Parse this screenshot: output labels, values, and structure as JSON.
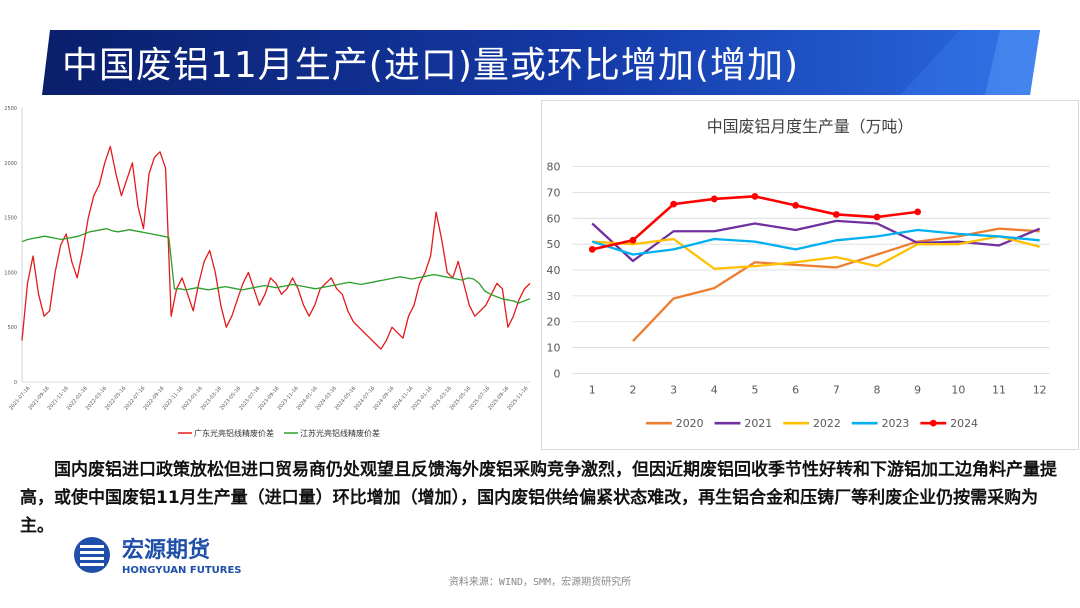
{
  "slide": {
    "title": "中国废铝11月生产(进口)量或环比增加(增加)",
    "paragraph": "国内废铝进口政策放松但进口贸易商仍处观望且反馈海外废铝采购竞争激烈，但因近期废铝回收季节性好转和下游铝加工边角料产量提高，或使中国废铝11月生产量（进口量）环比增加（增加），国内废铝供给偏紧状态难改，再生铝合金和压铸厂等利废企业仍按需采购为主。",
    "logo_cn": "宏源期货",
    "logo_en": "HONGYUAN FUTURES",
    "source": "资料来源：WIND，SMM，宏源期货研究所",
    "colors": {
      "banner_dark": "#0a1f6b",
      "banner_blue": "#1f4fd1",
      "logo_blue": "#1f4fa8"
    }
  },
  "chart_data": [
    {
      "type": "line",
      "title": "",
      "ylim": [
        0,
        2500
      ],
      "yticks": [
        "0",
        "500",
        "1000",
        "1500",
        "2000",
        "2500"
      ],
      "xticks": [
        "2021-07-16",
        "2021-09-16",
        "2021-11-16",
        "2022-01-16",
        "2022-03-16",
        "2022-05-16",
        "2022-07-16",
        "2022-09-16",
        "2022-11-16",
        "2023-01-16",
        "2023-03-16",
        "2023-05-16",
        "2023-07-16",
        "2023-09-16",
        "2023-11-16",
        "2024-01-16",
        "2024-03-16",
        "2024-05-16",
        "2024-07-16",
        "2024-09-16",
        "2024-11-16",
        "2025-01-16",
        "2025-03-16",
        "2025-05-16",
        "2025-07-16",
        "2025-09-16",
        "2025-11-16"
      ],
      "series": [
        {
          "name": "广东光亮铝线精废价差",
          "color": "#e31a1c",
          "values": [
            380,
            900,
            1150,
            800,
            600,
            650,
            1000,
            1250,
            1350,
            1100,
            950,
            1200,
            1500,
            1700,
            1800,
            2000,
            2150,
            1900,
            1700,
            1850,
            2000,
            1600,
            1400,
            1900,
            2050,
            2100,
            1950,
            600,
            850,
            950,
            800,
            650,
            900,
            1100,
            1200,
            1000,
            700,
            500,
            600,
            750,
            900,
            1000,
            850,
            700,
            800,
            950,
            900,
            800,
            850,
            950,
            850,
            700,
            600,
            700,
            850,
            900,
            950,
            850,
            800,
            650,
            550,
            500,
            450,
            400,
            350,
            300,
            380,
            500,
            450,
            400,
            600,
            700,
            900,
            1000,
            1150,
            1550,
            1300,
            1000,
            950,
            1100,
            900,
            700,
            600,
            650,
            700,
            800,
            900,
            850,
            500,
            600,
            750,
            850,
            900
          ]
        },
        {
          "name": "江苏光亮铝线精废价差",
          "color": "#2ca02c",
          "values": [
            1280,
            1300,
            1310,
            1320,
            1330,
            1320,
            1310,
            1300,
            1310,
            1320,
            1330,
            1350,
            1370,
            1380,
            1390,
            1400,
            1380,
            1370,
            1380,
            1390,
            1380,
            1370,
            1360,
            1350,
            1340,
            1330,
            1320,
            850,
            850,
            840,
            850,
            860,
            850,
            840,
            850,
            860,
            870,
            860,
            850,
            840,
            850,
            860,
            870,
            880,
            870,
            860,
            870,
            880,
            890,
            880,
            870,
            860,
            850,
            860,
            870,
            880,
            890,
            900,
            910,
            900,
            890,
            900,
            910,
            920,
            930,
            940,
            950,
            960,
            950,
            940,
            950,
            960,
            970,
            980,
            970,
            960,
            950,
            940,
            930,
            950,
            940,
            900,
            830,
            800,
            780,
            760,
            750,
            740,
            720,
            740,
            760
          ]
        }
      ]
    },
    {
      "type": "line",
      "title": "中国废铝月度生产量（万吨）",
      "xlabel": "",
      "ylabel": "",
      "ylim": [
        0,
        80
      ],
      "yticks": [
        "0",
        "10",
        "20",
        "30",
        "40",
        "50",
        "60",
        "70",
        "80"
      ],
      "categories": [
        "1",
        "2",
        "3",
        "4",
        "5",
        "6",
        "7",
        "8",
        "9",
        "10",
        "11",
        "12"
      ],
      "legend_position": "bottom",
      "series": [
        {
          "name": "2020",
          "color": "#ed7d31",
          "values": [
            null,
            12.5,
            29,
            33,
            43,
            42,
            41,
            46,
            51,
            53,
            56,
            55
          ]
        },
        {
          "name": "2021",
          "color": "#7030a0",
          "values": [
            58,
            43.5,
            55,
            55,
            58,
            55.5,
            59,
            58,
            50.5,
            51,
            49.5,
            56
          ]
        },
        {
          "name": "2022",
          "color": "#ffc000",
          "values": [
            51,
            50,
            52,
            40.5,
            41.5,
            43,
            45,
            41.5,
            50,
            50,
            53,
            49
          ]
        },
        {
          "name": "2023",
          "color": "#00b0f0",
          "values": [
            51,
            46,
            48,
            52,
            51,
            48,
            51.5,
            53,
            55.5,
            54,
            53,
            51.5
          ]
        },
        {
          "name": "2024",
          "color": "#ff0000",
          "marker": true,
          "values": [
            48,
            51.5,
            65.5,
            67.5,
            68.5,
            65,
            61.5,
            60.5,
            62.5,
            null,
            null,
            null
          ]
        }
      ]
    }
  ]
}
